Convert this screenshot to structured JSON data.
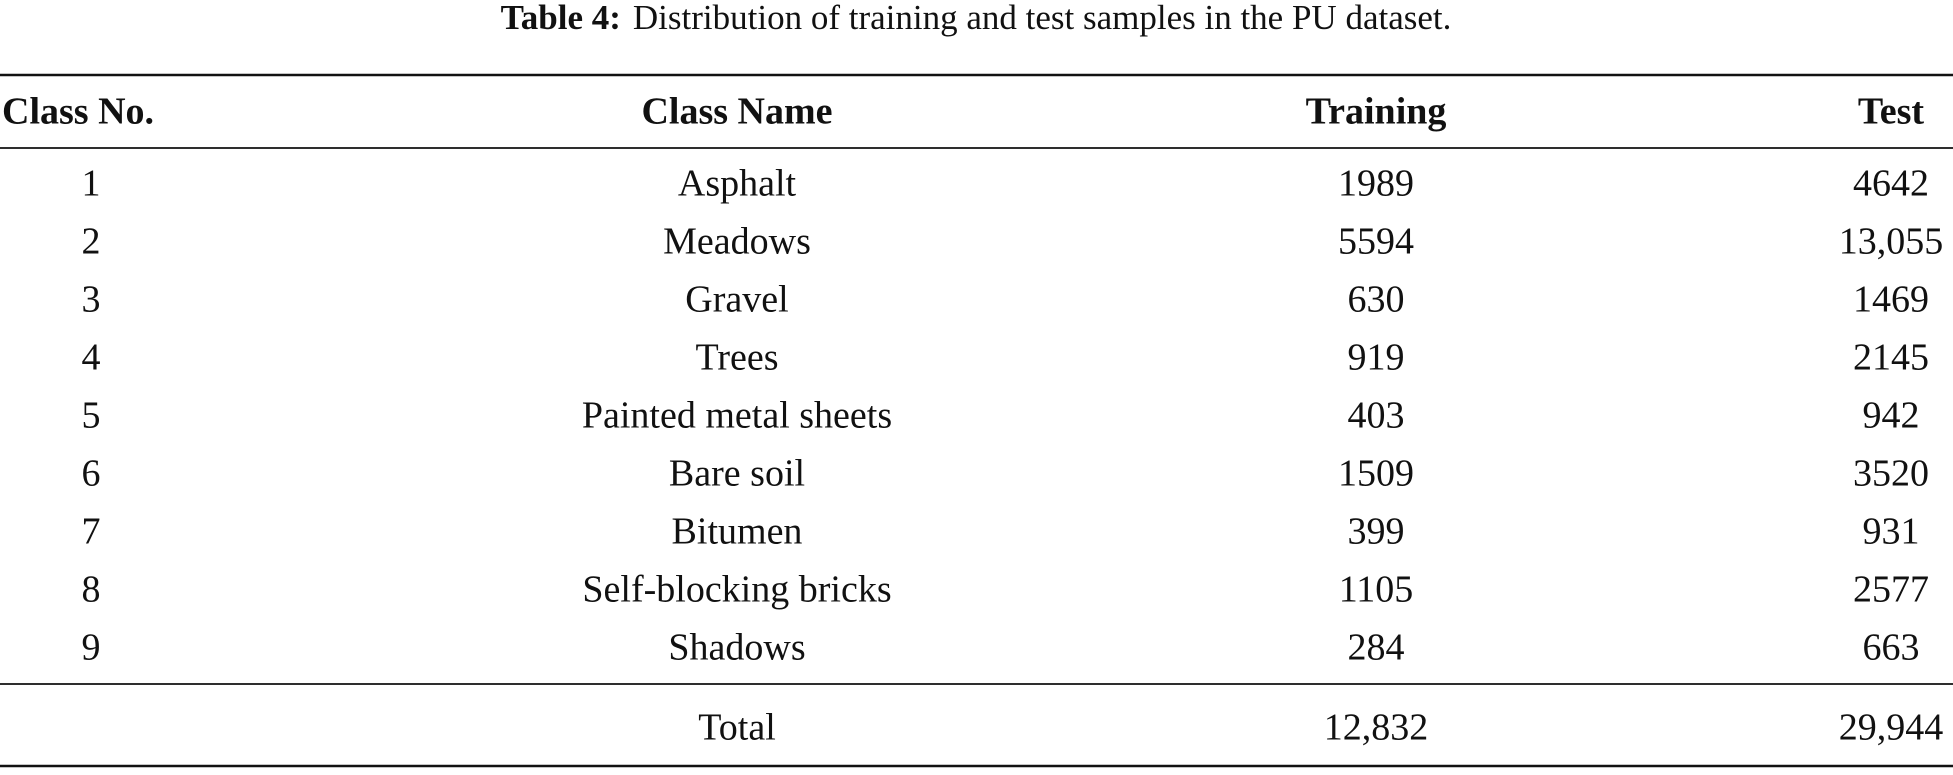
{
  "caption": {
    "label": "Table 4:",
    "text": "Distribution of training and test samples in the PU dataset."
  },
  "table": {
    "header": [
      "Class No.",
      "Class Name",
      "Training",
      "Test"
    ],
    "rows": [
      [
        "1",
        "Asphalt",
        "1989",
        "4642"
      ],
      [
        "2",
        "Meadows",
        "5594",
        "13,055"
      ],
      [
        "3",
        "Gravel",
        "630",
        "1469"
      ],
      [
        "4",
        "Trees",
        "919",
        "2145"
      ],
      [
        "5",
        "Painted metal sheets",
        "403",
        "942"
      ],
      [
        "6",
        "Bare soil",
        "1509",
        "3520"
      ],
      [
        "7",
        "Bitumen",
        "399",
        "931"
      ],
      [
        "8",
        "Self-blocking bricks",
        "1105",
        "2577"
      ],
      [
        "9",
        "Shadows",
        "284",
        "663"
      ]
    ],
    "total": {
      "label": "Total",
      "training": "12,832",
      "test": "29,944"
    }
  }
}
